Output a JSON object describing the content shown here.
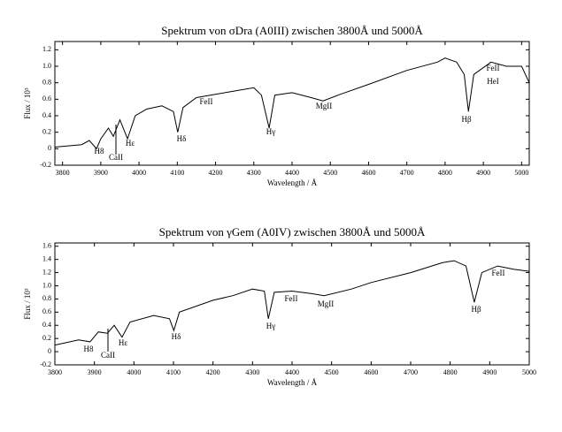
{
  "chart_data": [
    {
      "type": "line",
      "title": "Spektrum von σDra (A0III) zwischen 3800Å und 5000Å",
      "x_label": "Wavelength / Å",
      "y_label": "Flux / 10³",
      "color": "#000000",
      "x": [
        3780,
        3850,
        3870,
        3889,
        3900,
        3920,
        3933,
        3950,
        3970,
        3990,
        4020,
        4060,
        4090,
        4101,
        4115,
        4150,
        4200,
        4250,
        4300,
        4320,
        4340,
        4355,
        4400,
        4450,
        4481,
        4520,
        4600,
        4700,
        4780,
        4800,
        4830,
        4850,
        4861,
        4875,
        4920,
        4960,
        5000,
        5020
      ],
      "values": [
        0.02,
        0.05,
        0.1,
        0.0,
        0.12,
        0.25,
        0.15,
        0.35,
        0.12,
        0.4,
        0.48,
        0.52,
        0.45,
        0.2,
        0.5,
        0.62,
        0.66,
        0.7,
        0.74,
        0.65,
        0.25,
        0.65,
        0.68,
        0.62,
        0.58,
        0.65,
        0.78,
        0.95,
        1.05,
        1.1,
        1.05,
        0.9,
        0.45,
        0.9,
        1.05,
        1.0,
        1.0,
        0.8
      ],
      "xlim": [
        3780,
        5020
      ],
      "ylim": [
        -0.2,
        1.3
      ],
      "xticks": [
        3800,
        3900,
        4000,
        4100,
        4200,
        4300,
        4400,
        4500,
        4600,
        4700,
        4800,
        4900,
        5000
      ],
      "yticks": [
        -0.2,
        0,
        0.2,
        0.4,
        0.6,
        0.8,
        {
          "value": 1,
          "label": "1.0"
        },
        1.2
      ],
      "annotations": [
        "H8",
        "CaII",
        "Hε",
        "Hδ",
        "Hγ",
        "FeII",
        "MgII",
        "Hβ",
        "FeII",
        "HeI"
      ]
    },
    {
      "type": "line",
      "title": "Spektrum von γGem (A0IV) zwischen 3800Å und 5000Å",
      "x_label": "Wavelength / Å",
      "y_label": "Flux / 10³",
      "color": "#000000",
      "x": [
        3800,
        3860,
        3889,
        3910,
        3933,
        3950,
        3970,
        3990,
        4050,
        4090,
        4101,
        4115,
        4200,
        4250,
        4300,
        4330,
        4340,
        4355,
        4400,
        4450,
        4481,
        4550,
        4600,
        4700,
        4780,
        4810,
        4840,
        4861,
        4880,
        4920,
        4960,
        5000
      ],
      "values": [
        0.1,
        0.18,
        0.15,
        0.3,
        0.28,
        0.4,
        0.22,
        0.45,
        0.55,
        0.5,
        0.32,
        0.6,
        0.78,
        0.85,
        0.95,
        0.92,
        0.5,
        0.9,
        0.92,
        0.88,
        0.85,
        0.95,
        1.05,
        1.2,
        1.35,
        1.38,
        1.3,
        0.75,
        1.2,
        1.3,
        1.25,
        1.22
      ],
      "xlim": [
        3800,
        5000
      ],
      "ylim": [
        -0.2,
        1.65
      ],
      "xticks": [
        3800,
        3900,
        4000,
        4100,
        4200,
        4300,
        4400,
        4500,
        4600,
        4700,
        4800,
        4900,
        5000
      ],
      "yticks": [
        -0.2,
        0,
        0.2,
        0.4,
        0.6,
        0.8,
        {
          "value": 1,
          "label": "1.0"
        },
        1.2,
        1.4,
        1.6
      ],
      "annotations": [
        "H8",
        "CaII",
        "Hε",
        "Hδ",
        "Hγ",
        "FeII",
        "MgII",
        "Hβ",
        "FeII"
      ]
    }
  ]
}
